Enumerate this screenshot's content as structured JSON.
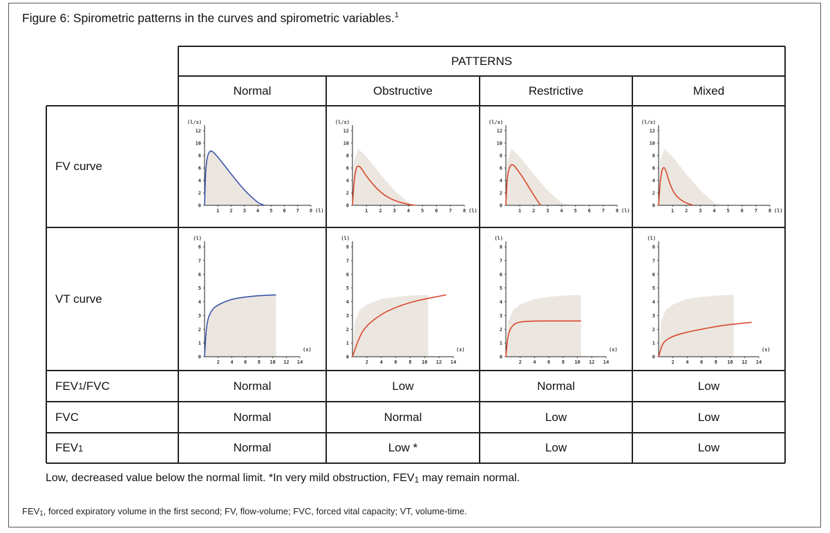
{
  "figure": {
    "title": "Figure 6: Spirometric patterns in the curves and spirometric variables.",
    "title_ref": "1"
  },
  "table": {
    "group_header": "PATTERNS",
    "columns": [
      "Normal",
      "Obstructive",
      "Restrictive",
      "Mixed"
    ],
    "rows": [
      {
        "label": "FV curve",
        "type": "fv"
      },
      {
        "label": "VT curve",
        "type": "vt"
      },
      {
        "label_main": "FEV",
        "label_sub": "1",
        "label_rest": "/FVC",
        "values": [
          "Normal",
          "Low",
          "Normal",
          "Low"
        ]
      },
      {
        "label_main": "FVC",
        "label_sub": "",
        "label_rest": "",
        "values": [
          "Normal",
          "Normal",
          "Low",
          "Low"
        ]
      },
      {
        "label_main": "FEV",
        "label_sub": "1",
        "label_rest": "",
        "values": [
          "Normal",
          "Low *",
          "Low",
          "Low"
        ]
      }
    ]
  },
  "plots": {
    "fv": {
      "y_unit": "(l/s)",
      "x_unit": "(l)",
      "y_ticks": [
        "0",
        "2",
        "4",
        "6",
        "8",
        "10",
        "12"
      ],
      "x_ticks": [
        "1",
        "2",
        "3",
        "4",
        "5",
        "6",
        "7",
        "8"
      ],
      "normal_color": "#3a55a8",
      "pattern_color": "#d9472b",
      "band_color": "#ece6e0"
    },
    "vt": {
      "y_unit": "(l)",
      "x_unit": "(s)",
      "y_ticks": [
        "0",
        "1",
        "2",
        "3",
        "4",
        "5",
        "6",
        "7",
        "8"
      ],
      "x_ticks": [
        "2",
        "4",
        "6",
        "8",
        "10",
        "12",
        "14"
      ]
    }
  },
  "chart_data": [
    {
      "type": "line",
      "title": "FV curve — Normal",
      "xlabel": "(l)",
      "ylabel": "(l/s)",
      "xlim": [
        0,
        8
      ],
      "ylim": [
        0,
        12
      ],
      "series": [
        {
          "name": "Normal",
          "x": [
            0,
            0.1,
            0.4,
            1,
            2,
            3,
            4,
            4.5
          ],
          "y": [
            0,
            7,
            9.1,
            7.8,
            5.0,
            2.4,
            0.4,
            0
          ]
        }
      ]
    },
    {
      "type": "line",
      "title": "FV curve — Obstructive",
      "xlabel": "(l)",
      "ylabel": "(l/s)",
      "xlim": [
        0,
        8
      ],
      "ylim": [
        0,
        12
      ],
      "series": [
        {
          "name": "Obstructive",
          "x": [
            0,
            0.15,
            0.4,
            1,
            2,
            3,
            4,
            4.5
          ],
          "y": [
            0,
            5,
            6.8,
            4.6,
            2.0,
            0.7,
            0.15,
            0
          ]
        }
      ]
    },
    {
      "type": "line",
      "title": "FV curve — Restrictive",
      "xlabel": "(l)",
      "ylabel": "(l/s)",
      "xlim": [
        0,
        8
      ],
      "ylim": [
        0,
        12
      ],
      "series": [
        {
          "name": "Restrictive",
          "x": [
            0,
            0.1,
            0.4,
            1,
            1.5,
            2,
            2.5
          ],
          "y": [
            0,
            5,
            7.0,
            5.2,
            3.5,
            1.6,
            0
          ]
        }
      ]
    },
    {
      "type": "line",
      "title": "FV curve — Mixed",
      "xlabel": "(l)",
      "ylabel": "(l/s)",
      "xlim": [
        0,
        8
      ],
      "ylim": [
        0,
        12
      ],
      "series": [
        {
          "name": "Mixed",
          "x": [
            0,
            0.15,
            0.4,
            0.8,
            1.2,
            1.8,
            2.5
          ],
          "y": [
            0,
            5,
            6.6,
            3.4,
            1.6,
            0.5,
            0
          ]
        }
      ]
    },
    {
      "type": "line",
      "title": "VT curve — Normal",
      "xlabel": "(s)",
      "ylabel": "(l)",
      "xlim": [
        0,
        14
      ],
      "ylim": [
        0,
        8
      ],
      "series": [
        {
          "name": "Normal",
          "x": [
            0,
            0.3,
            1,
            2,
            4,
            6,
            8,
            10.5
          ],
          "y": [
            0,
            2.5,
            3.4,
            3.8,
            4.2,
            4.35,
            4.45,
            4.5
          ]
        }
      ]
    },
    {
      "type": "line",
      "title": "VT curve — Obstructive",
      "xlabel": "(s)",
      "ylabel": "(l)",
      "xlim": [
        0,
        14
      ],
      "ylim": [
        0,
        8
      ],
      "series": [
        {
          "name": "Obstructive",
          "x": [
            0,
            1,
            2,
            4,
            6,
            8,
            10,
            13
          ],
          "y": [
            0,
            1.5,
            2.3,
            3.1,
            3.6,
            3.95,
            4.2,
            4.5
          ]
        }
      ]
    },
    {
      "type": "line",
      "title": "VT curve — Restrictive",
      "xlabel": "(s)",
      "ylabel": "(l)",
      "xlim": [
        0,
        14
      ],
      "ylim": [
        0,
        8
      ],
      "series": [
        {
          "name": "Restrictive",
          "x": [
            0,
            0.3,
            1,
            2,
            4,
            6,
            8,
            10.5
          ],
          "y": [
            0,
            1.7,
            2.35,
            2.55,
            2.6,
            2.6,
            2.6,
            2.6
          ]
        }
      ]
    },
    {
      "type": "line",
      "title": "VT curve — Mixed",
      "xlabel": "(s)",
      "ylabel": "(l)",
      "xlim": [
        0,
        14
      ],
      "ylim": [
        0,
        8
      ],
      "series": [
        {
          "name": "Mixed",
          "x": [
            0,
            0.5,
            1,
            2,
            4,
            6,
            8,
            10,
            13
          ],
          "y": [
            0,
            0.9,
            1.2,
            1.5,
            1.8,
            2.0,
            2.2,
            2.35,
            2.5
          ]
        }
      ]
    }
  ],
  "footnotes": {
    "note1": "Low, decreased value below the normal limit. *In very mild obstruction, FEV",
    "note1_sub": "1",
    "note1_end": " may remain normal.",
    "note2_a": "FEV",
    "note2_sub": "1",
    "note2_b": ", forced expiratory volume in the first second; FV, flow-volume; FVC, forced vital capacity; VT, volume-time."
  }
}
